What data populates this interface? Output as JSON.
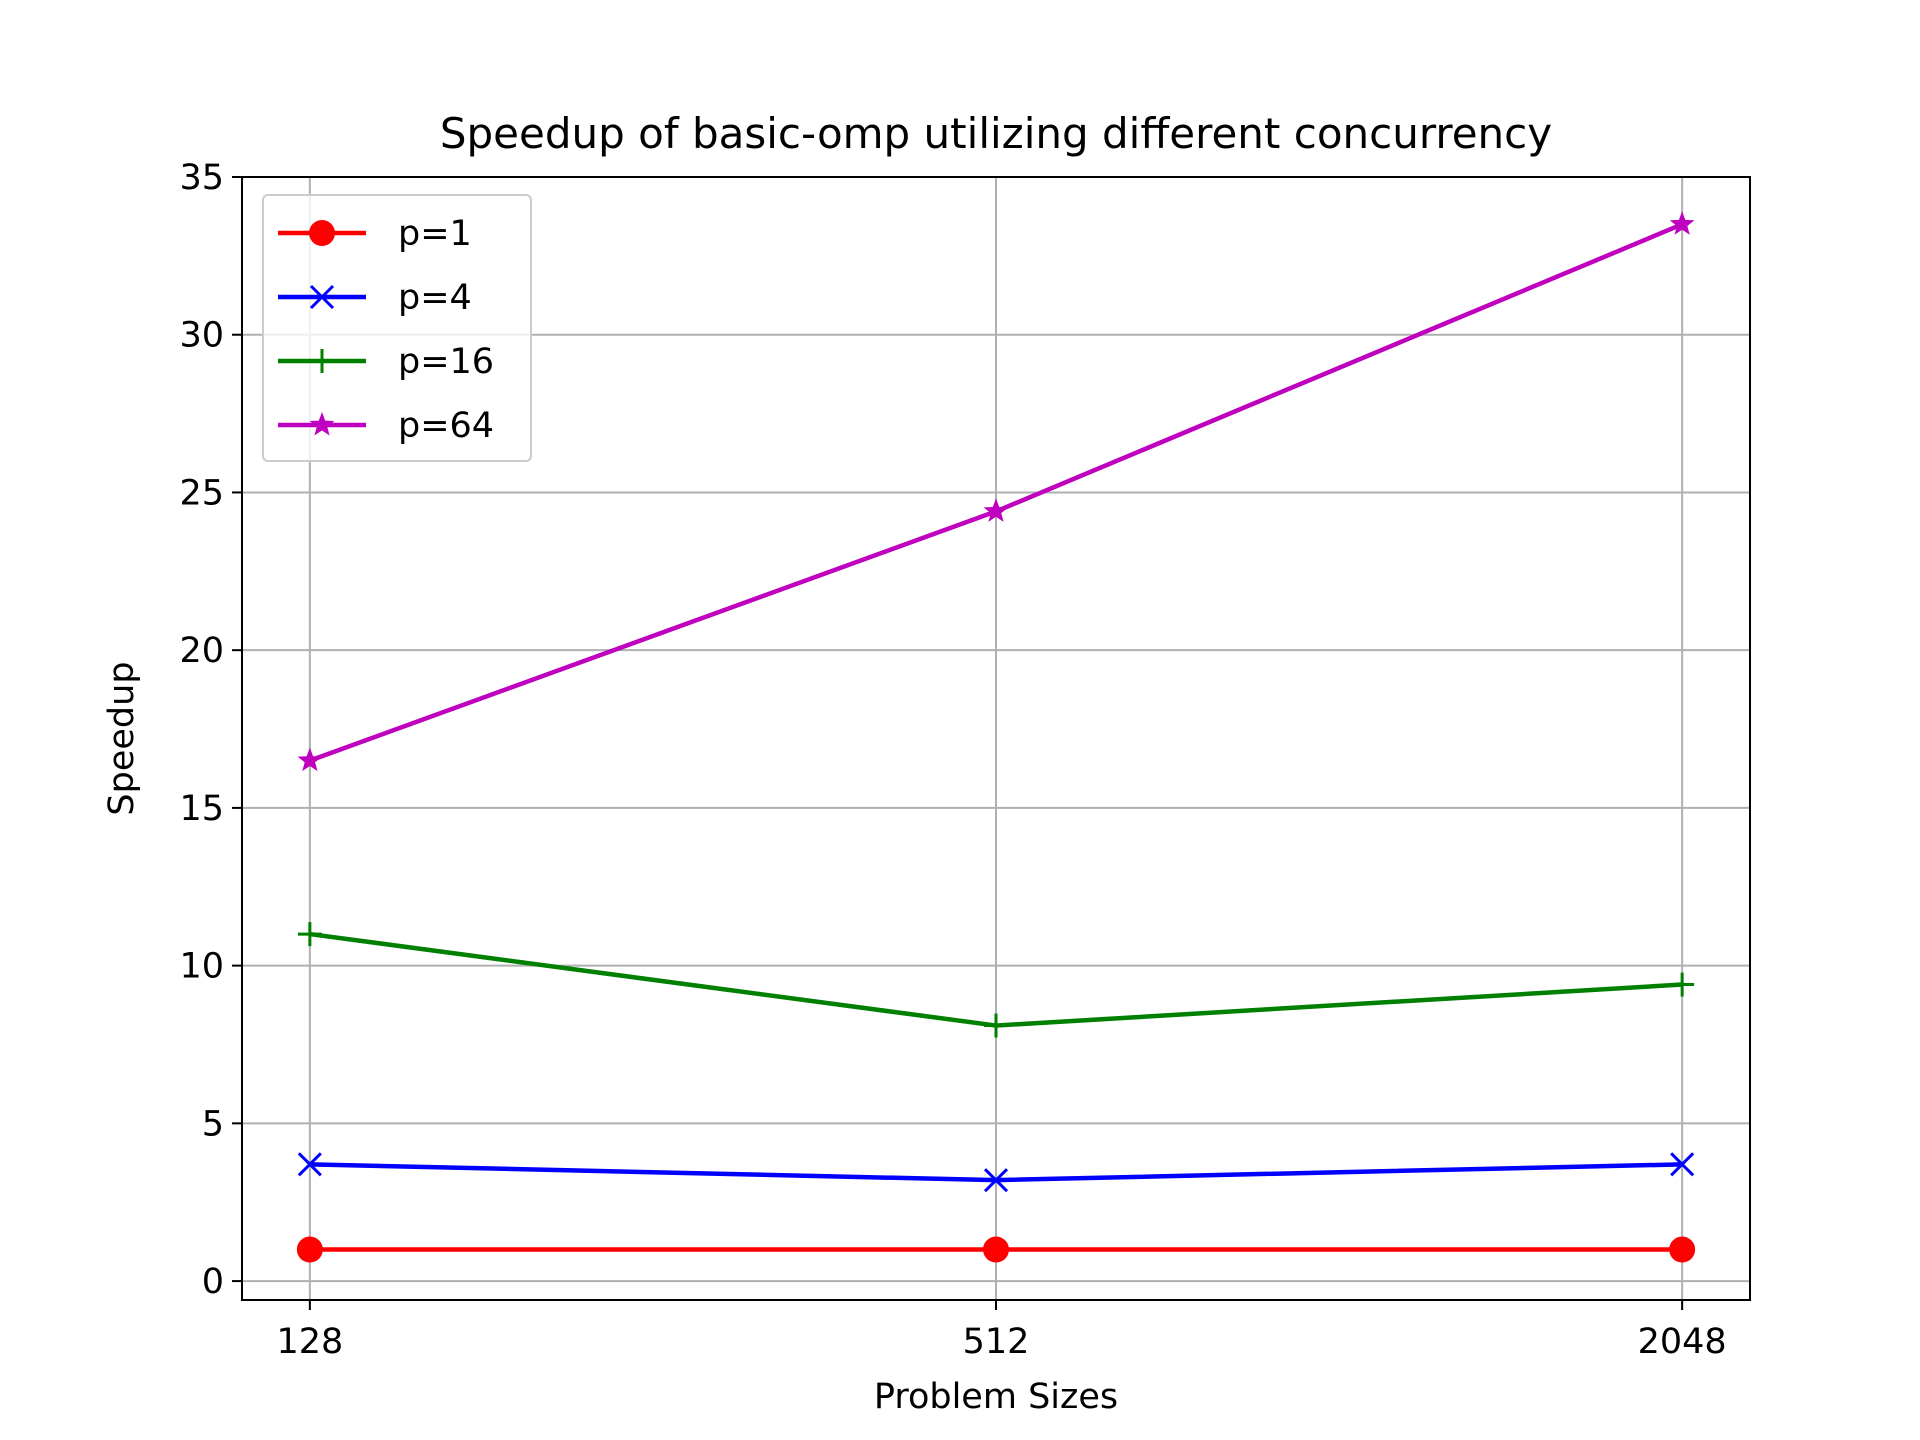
{
  "chart_data": {
    "type": "line",
    "title": "Speedup of basic-omp utilizing different concurrency",
    "xlabel": "Problem Sizes",
    "ylabel": "Speedup",
    "categories": [
      "128",
      "512",
      "2048"
    ],
    "ylim": [
      -0.6,
      35
    ],
    "yticks": [
      0,
      5,
      10,
      15,
      20,
      25,
      30,
      35
    ],
    "grid": true,
    "legend_position": "top-left",
    "series": [
      {
        "name": "p=1",
        "color": "#ff0000",
        "marker": "circle",
        "values": [
          1.0,
          1.0,
          1.0
        ]
      },
      {
        "name": "p=4",
        "color": "#0000ff",
        "marker": "x",
        "values": [
          3.7,
          3.2,
          3.7
        ]
      },
      {
        "name": "p=16",
        "color": "#008000",
        "marker": "plus",
        "values": [
          11.0,
          8.1,
          9.4
        ]
      },
      {
        "name": "p=64",
        "color": "#bf00bf",
        "marker": "star",
        "values": [
          16.5,
          24.4,
          33.5
        ]
      }
    ]
  }
}
